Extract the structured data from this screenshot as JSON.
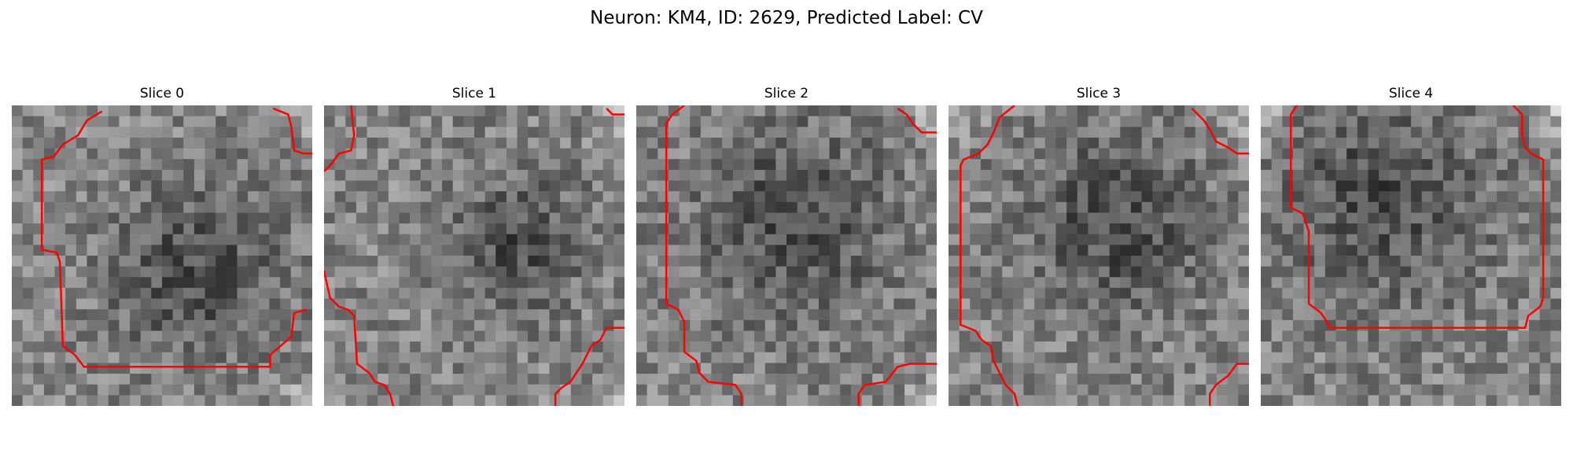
{
  "figure": {
    "title": "Neuron: KM4, ID: 2629, Predicted Label: CV",
    "contour_color": "#ff0000"
  },
  "slices": [
    {
      "title": "Slice 0",
      "dark_blob": [
        0.62,
        0.55,
        0.28
      ],
      "bright_corners": [
        "top-right",
        "bottom-right"
      ],
      "contour_paths": [
        [
          [
            0.3,
            0.02
          ],
          [
            0.25,
            0.05
          ],
          [
            0.22,
            0.1
          ],
          [
            0.17,
            0.13
          ],
          [
            0.14,
            0.17
          ],
          [
            0.1,
            0.18
          ],
          [
            0.1,
            0.48
          ],
          [
            0.15,
            0.49
          ],
          [
            0.16,
            0.52
          ],
          [
            0.17,
            0.8
          ],
          [
            0.21,
            0.83
          ],
          [
            0.24,
            0.87
          ],
          [
            0.86,
            0.87
          ],
          [
            0.86,
            0.83
          ],
          [
            0.93,
            0.77
          ],
          [
            0.94,
            0.69
          ],
          [
            0.98,
            0.68
          ]
        ],
        [
          [
            0.87,
            0.01
          ],
          [
            0.92,
            0.03
          ],
          [
            0.93,
            0.07
          ],
          [
            0.94,
            0.15
          ],
          [
            0.97,
            0.16
          ],
          [
            1.0,
            0.16
          ]
        ]
      ]
    },
    {
      "title": "Slice 1",
      "dark_blob": [
        0.65,
        0.45,
        0.22
      ],
      "bright_corners": [
        "top-right",
        "bottom-right"
      ],
      "contour_paths": [
        [
          [
            0.09,
            0.0
          ],
          [
            0.1,
            0.1
          ],
          [
            0.09,
            0.15
          ],
          [
            0.05,
            0.16
          ],
          [
            0.02,
            0.2
          ],
          [
            0.0,
            0.22
          ]
        ],
        [
          [
            0.94,
            0.01
          ],
          [
            0.96,
            0.03
          ],
          [
            1.0,
            0.03
          ]
        ],
        [
          [
            0.0,
            0.55
          ],
          [
            0.02,
            0.64
          ],
          [
            0.05,
            0.67
          ],
          [
            0.08,
            0.68
          ],
          [
            0.1,
            0.7
          ],
          [
            0.11,
            0.86
          ],
          [
            0.15,
            0.89
          ],
          [
            0.17,
            0.92
          ],
          [
            0.2,
            0.93
          ],
          [
            0.22,
            0.96
          ],
          [
            0.23,
            1.0
          ]
        ],
        [
          [
            1.0,
            0.74
          ],
          [
            0.94,
            0.74
          ],
          [
            0.92,
            0.78
          ],
          [
            0.89,
            0.8
          ],
          [
            0.86,
            0.86
          ],
          [
            0.82,
            0.92
          ],
          [
            0.79,
            0.94
          ],
          [
            0.77,
            0.96
          ],
          [
            0.77,
            1.0
          ]
        ]
      ]
    },
    {
      "title": "Slice 2",
      "dark_blob": [
        0.52,
        0.38,
        0.32
      ],
      "bright_corners": [
        "top-right",
        "bottom-right"
      ],
      "contour_paths": [
        [
          [
            0.16,
            0.0
          ],
          [
            0.12,
            0.03
          ],
          [
            0.1,
            0.06
          ],
          [
            0.1,
            0.66
          ],
          [
            0.14,
            0.68
          ],
          [
            0.16,
            0.72
          ],
          [
            0.16,
            0.82
          ],
          [
            0.2,
            0.85
          ],
          [
            0.21,
            0.89
          ],
          [
            0.24,
            0.92
          ],
          [
            0.33,
            0.93
          ],
          [
            0.35,
            0.96
          ],
          [
            0.35,
            1.0
          ]
        ],
        [
          [
            0.87,
            0.01
          ],
          [
            0.9,
            0.03
          ],
          [
            0.92,
            0.06
          ],
          [
            0.95,
            0.09
          ],
          [
            1.0,
            0.09
          ]
        ],
        [
          [
            0.74,
            1.0
          ],
          [
            0.74,
            0.96
          ],
          [
            0.76,
            0.93
          ],
          [
            0.83,
            0.92
          ],
          [
            0.87,
            0.87
          ],
          [
            0.91,
            0.86
          ],
          [
            1.0,
            0.86
          ]
        ]
      ]
    },
    {
      "title": "Slice 3",
      "dark_blob": [
        0.55,
        0.4,
        0.3
      ],
      "bright_corners": [
        "top-right",
        "top-left"
      ],
      "contour_paths": [
        [
          [
            0.22,
            0.0
          ],
          [
            0.17,
            0.04
          ],
          [
            0.15,
            0.09
          ],
          [
            0.13,
            0.13
          ],
          [
            0.1,
            0.16
          ],
          [
            0.05,
            0.18
          ],
          [
            0.04,
            0.2
          ],
          [
            0.04,
            0.73
          ],
          [
            0.09,
            0.75
          ],
          [
            0.11,
            0.78
          ],
          [
            0.14,
            0.8
          ],
          [
            0.15,
            0.85
          ],
          [
            0.17,
            0.89
          ],
          [
            0.19,
            0.93
          ],
          [
            0.22,
            0.96
          ],
          [
            0.23,
            1.0
          ]
        ],
        [
          [
            0.81,
            0.01
          ],
          [
            0.85,
            0.05
          ],
          [
            0.87,
            0.08
          ],
          [
            0.89,
            0.12
          ],
          [
            0.93,
            0.14
          ],
          [
            0.96,
            0.16
          ],
          [
            0.98,
            0.16
          ],
          [
            1.0,
            0.16
          ]
        ],
        [
          [
            1.0,
            0.86
          ],
          [
            0.96,
            0.86
          ],
          [
            0.93,
            0.9
          ],
          [
            0.89,
            0.93
          ],
          [
            0.87,
            0.96
          ],
          [
            0.87,
            1.0
          ]
        ]
      ]
    },
    {
      "title": "Slice 4",
      "dark_blob": [
        0.4,
        0.3,
        0.35
      ],
      "bright_corners": [
        "top-right",
        "top-left"
      ],
      "contour_paths": [
        [
          [
            0.12,
            0.0
          ],
          [
            0.1,
            0.03
          ],
          [
            0.1,
            0.34
          ],
          [
            0.14,
            0.36
          ],
          [
            0.16,
            0.42
          ],
          [
            0.16,
            0.66
          ],
          [
            0.2,
            0.69
          ],
          [
            0.22,
            0.72
          ],
          [
            0.23,
            0.74
          ],
          [
            0.88,
            0.74
          ],
          [
            0.89,
            0.7
          ],
          [
            0.93,
            0.67
          ],
          [
            0.94,
            0.64
          ],
          [
            0.94,
            0.18
          ],
          [
            0.9,
            0.16
          ],
          [
            0.88,
            0.14
          ],
          [
            0.87,
            0.1
          ],
          [
            0.87,
            0.03
          ],
          [
            0.84,
            0.0
          ]
        ]
      ]
    }
  ]
}
